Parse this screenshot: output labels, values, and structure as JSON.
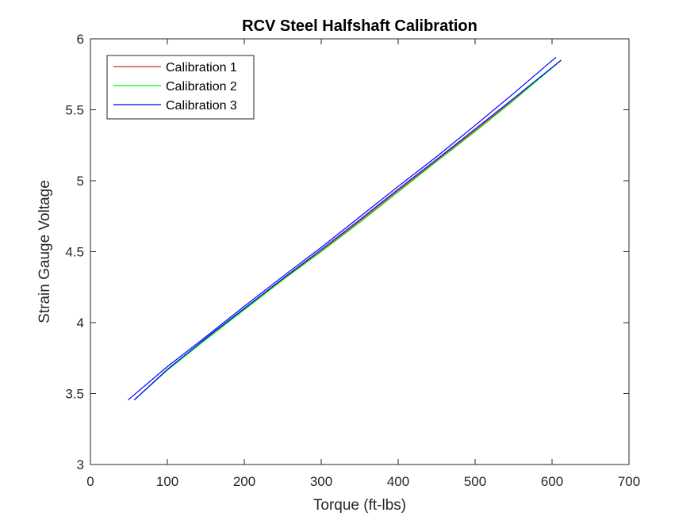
{
  "chart_data": {
    "type": "line",
    "title": "RCV Steel Halfshaft Calibration",
    "xlabel": "Torque (ft-lbs)",
    "ylabel": "Strain Gauge Voltage",
    "xlim": [
      0,
      700
    ],
    "ylim": [
      3,
      6
    ],
    "xticks": [
      0,
      100,
      200,
      300,
      400,
      500,
      600,
      700
    ],
    "yticks": [
      3,
      3.5,
      4,
      4.5,
      5,
      5.5,
      6
    ],
    "xtick_labels": [
      "0",
      "100",
      "200",
      "300",
      "400",
      "500",
      "600",
      "700"
    ],
    "ytick_labels": [
      "3",
      "3.5",
      "4",
      "4.5",
      "5",
      "5.5",
      "6"
    ],
    "grid": false,
    "legend_position": "top-left",
    "series": [
      {
        "name": "Calibration 1",
        "color": "#d62728",
        "x": [
          57,
          100,
          150,
          200,
          250,
          300,
          350,
          400,
          450,
          500,
          550,
          612
        ],
        "y": [
          3.455,
          3.67,
          3.885,
          4.095,
          4.305,
          4.505,
          4.715,
          4.93,
          5.14,
          5.355,
          5.57,
          5.85
        ]
      },
      {
        "name": "Calibration 2",
        "color": "#00ff00",
        "x": [
          57,
          100,
          150,
          200,
          250,
          300,
          350,
          400,
          450,
          500,
          550,
          612
        ],
        "y": [
          3.455,
          3.665,
          3.88,
          4.09,
          4.3,
          4.5,
          4.705,
          4.92,
          5.135,
          5.345,
          5.565,
          5.85
        ]
      },
      {
        "name": "Calibration 3",
        "color": "#0000ff",
        "x": [
          49,
          100,
          150,
          200,
          250,
          300,
          350,
          400,
          450,
          500,
          550,
          605
        ],
        "y": [
          3.455,
          3.69,
          3.9,
          4.115,
          4.325,
          4.53,
          4.745,
          4.96,
          5.17,
          5.39,
          5.615,
          5.87
        ]
      },
      {
        "name": "Calibration 3",
        "color": "#0000ff",
        "show_in_legend": false,
        "x": [
          57,
          100,
          150,
          200,
          250,
          300,
          350,
          400,
          450,
          500,
          550,
          612
        ],
        "y": [
          3.455,
          3.67,
          3.89,
          4.1,
          4.31,
          4.515,
          4.725,
          4.94,
          5.15,
          5.365,
          5.58,
          5.85
        ]
      }
    ]
  }
}
